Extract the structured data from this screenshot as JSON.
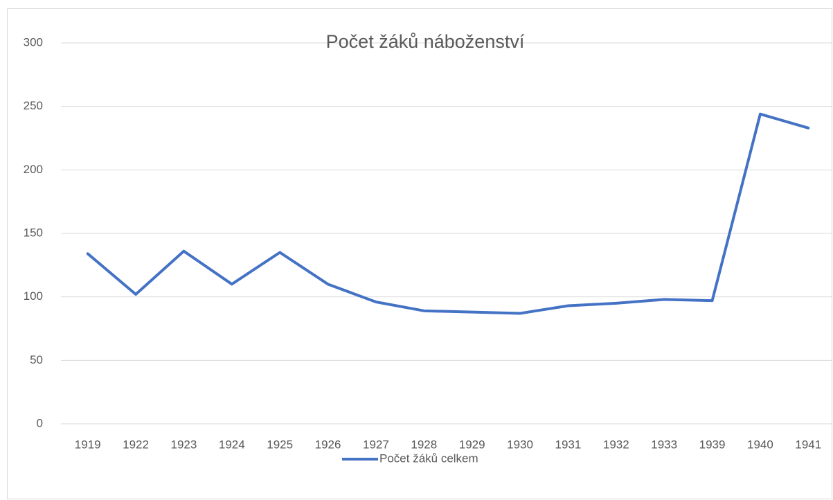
{
  "chart_data": {
    "type": "line",
    "title": "Počet žáků náboženství",
    "categories": [
      "1919",
      "1922",
      "1923",
      "1924",
      "1925",
      "1926",
      "1927",
      "1928",
      "1929",
      "1930",
      "1931",
      "1932",
      "1933",
      "1939",
      "1940",
      "1941"
    ],
    "series": [
      {
        "name": "Počet žáků celkem",
        "color": "#4472c4",
        "values": [
          134,
          102,
          136,
          110,
          135,
          110,
          96,
          89,
          88,
          87,
          93,
          95,
          98,
          97,
          244,
          233
        ]
      }
    ],
    "ylim": [
      0,
      300
    ],
    "yticks": [
      0,
      50,
      100,
      150,
      200,
      250,
      300
    ],
    "grid": true,
    "legend": "bottom"
  }
}
